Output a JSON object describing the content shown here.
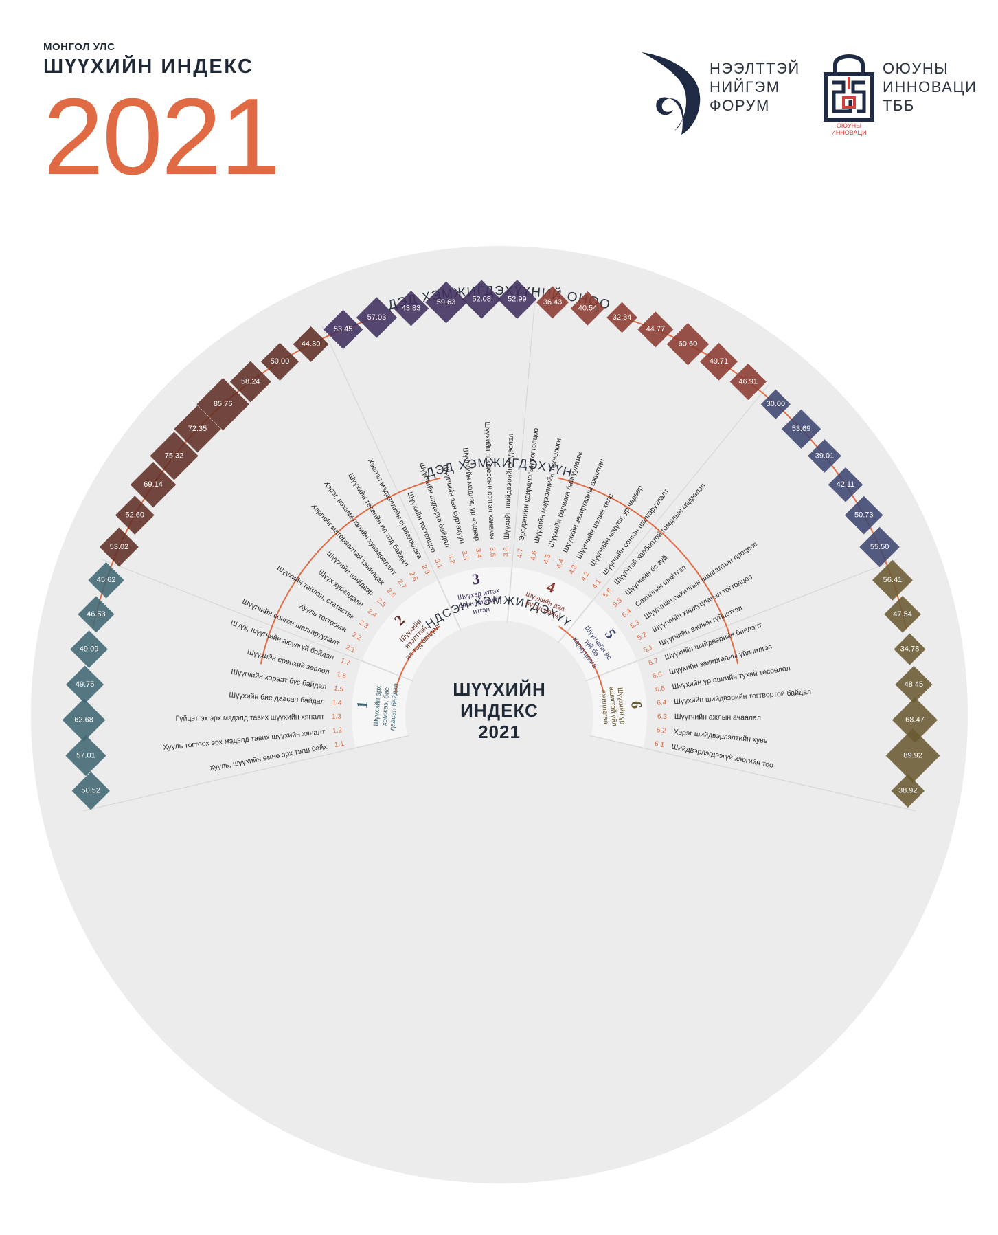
{
  "header": {
    "country": "МОНГОЛ УЛС",
    "title": "ШҮҮХИЙН ИНДЕКС",
    "year": "2021"
  },
  "logos": {
    "forum_lines": [
      "НЭЭЛТТЭЙ",
      "НИЙГЭМ",
      "ФОРУМ"
    ],
    "innovation_lines": [
      "ОЮУНЫ",
      "ИННОВАЦИ",
      "ТББ"
    ],
    "innovation_caption": [
      "ОЮУНЫ",
      "ИННОВАЦИ"
    ]
  },
  "colors": {
    "accent": "#e06a43",
    "background_disc": "#ececec",
    "dim1": "#3f6673",
    "dim2": "#5e2f26",
    "dim3": "#3f2f5c",
    "dim4": "#8a3a30",
    "dim5": "#3d4570",
    "dim6": "#6a5a32"
  },
  "chart_data": {
    "type": "radial",
    "title": "ШҮҮХИЙН ИНДЕКС",
    "center_lines": [
      "ШҮҮХИЙН",
      "ИНДЕКС",
      "2021"
    ],
    "ring_labels": {
      "outer": "ДЭД ХЭМЖИГДЭХҮҮНИЙ ОНОО",
      "middle": "ДЭД ХЭМЖИГДЭХҮҮН",
      "inner": "ҮНДСЭН ХЭМЖИГДЭХҮҮН"
    },
    "dimensions": [
      {
        "num": "1",
        "name_lines": [
          "Шүүхийн эрх",
          "хэмжээ, бие",
          "даасан байдал"
        ],
        "color": "#3f6673",
        "indicators": [
          {
            "code": "1.1",
            "label": "Хууль, шүүхийн өмнө эрх тэгш байх",
            "value": 50.52
          },
          {
            "code": "1.2",
            "label": "Хууль тогтоох эрх мэдэлд тавих шүүхийн хяналт",
            "value": 57.01
          },
          {
            "code": "1.3",
            "label": "Гүйцэтгэх эрх мэдэлд тавих шүүхийн хяналт",
            "value": 62.68
          },
          {
            "code": "1.4",
            "label": "Шүүхийн бие даасан байдал",
            "value": 49.75
          },
          {
            "code": "1.5",
            "label": "Шүүгчийн хараат бус байдал",
            "value": 49.09
          },
          {
            "code": "1.6",
            "label": "Шүүхийн ерөнхий зөвлөл",
            "value": 46.53
          },
          {
            "code": "1.7",
            "label": "Шүүх, шүүгчийн аюулгүй байдал",
            "value": 45.62
          }
        ]
      },
      {
        "num": "2",
        "name_lines": [
          "Шүүхийн",
          "нээлттэй,",
          "ил тод байдал"
        ],
        "color": "#5e2f26",
        "indicators": [
          {
            "code": "2.1",
            "label": "Шүүгчийн сонгон шалгаруулалт",
            "value": 53.02
          },
          {
            "code": "2.2",
            "label": "Хууль тогтоомж",
            "value": 52.6
          },
          {
            "code": "2.3",
            "label": "Шүүхийн тайлан, статистик",
            "value": 69.14
          },
          {
            "code": "2.4",
            "label": "Шүүх хуралдаан",
            "value": 75.32
          },
          {
            "code": "2.5",
            "label": "Шүүхийн шийдвэр",
            "value": 72.35
          },
          {
            "code": "2.6",
            "label": "Хэргийн материалтай танилцах",
            "value": 85.76
          },
          {
            "code": "2.7",
            "label": "Хэрэг, нэхэмжлэлийн хуваарилалт",
            "value": 58.24
          },
          {
            "code": "2.8",
            "label": "Шүүхийн төсвийн ил тод байдал",
            "value": 50.0
          },
          {
            "code": "2.9",
            "label": "Хэвлэл мэдээллийн сурвалжлага",
            "value": 44.3
          }
        ]
      },
      {
        "num": "3",
        "name_lines": [
          "Шүүхэд итгэх",
          "олон нийтийн",
          "итгэл"
        ],
        "color": "#3f2f5c",
        "indicators": [
          {
            "code": "3.1",
            "label": "Шүүхийн тогтолцоо",
            "value": 53.45
          },
          {
            "code": "3.2",
            "label": "Шүүгчийн шударга байдал",
            "value": 57.03
          },
          {
            "code": "3.3",
            "label": "Шүүгчийн зан суртахуун",
            "value": 43.83
          },
          {
            "code": "3.4",
            "label": "Шүүгчийн мэдлэг, ур чадвар",
            "value": 59.63
          },
          {
            "code": "3.5",
            "label": "Шүүхийн процессын сэтгэл ханамж",
            "value": 52.08
          },
          {
            "code": "3.6",
            "label": "Шүүхийн шийдвэрийн үндэслэл",
            "value": 52.99
          }
        ]
      },
      {
        "num": "4",
        "name_lines": [
          "Шүүхийн дэд",
          "бүтэц нөөц"
        ],
        "color": "#8a3a30",
        "indicators": [
          {
            "code": "4.7",
            "label": "Эрсдэлийн удирдлагын тогтолцоо",
            "value": 36.43
          },
          {
            "code": "4.6",
            "label": "Шүүхийн мэдээллийн технологи",
            "value": 40.54
          },
          {
            "code": "4.5",
            "label": "Шүүхийн барилга байгууламж",
            "value": 32.34
          },
          {
            "code": "4.4",
            "label": "Шүүхийн захиргааны ажилтан",
            "value": 44.77
          },
          {
            "code": "4.3",
            "label": "Шүүгчийн цалин хөлс",
            "value": 60.6
          },
          {
            "code": "4.2",
            "label": "Шүүгчийн мэдлэг, ур чадвар",
            "value": 49.71
          },
          {
            "code": "4.1",
            "label": "Шүүгчийн сонгон шалгаруулалт",
            "value": 46.91
          }
        ]
      },
      {
        "num": "5",
        "name_lines": [
          "Шүүгчийн ёс",
          "зүй ба",
          "хариуцлага"
        ],
        "color": "#3d4570",
        "indicators": [
          {
            "code": "5.6",
            "label": "Шүүгчтэй холбоотой гомдлын мэдээлэл",
            "value": 30.0
          },
          {
            "code": "5.5",
            "label": "Шүүгчийн ёс зүй",
            "value": 53.69
          },
          {
            "code": "5.4",
            "label": "Сахилгын шийтгэл",
            "value": 39.01
          },
          {
            "code": "5.3",
            "label": "Шүүгчийн сахилгын шалгалтын процесс",
            "value": 42.11
          },
          {
            "code": "5.2",
            "label": "Шүүгчийн хариуцлагын тогтолцоо",
            "value": 50.73
          },
          {
            "code": "5.1",
            "label": "Шүүгчийн ажлын гүйцэтгэл",
            "value": 55.5
          }
        ]
      },
      {
        "num": "6",
        "name_lines": [
          "Шүүхийн үр",
          "ашигтай үйл",
          "ажиллагаа"
        ],
        "color": "#6a5a32",
        "indicators": [
          {
            "code": "6.7",
            "label": "Шүүхийн шийдвэрийн биелэлт",
            "value": 56.41
          },
          {
            "code": "6.6",
            "label": "Шүүхийн захиргааны үйлчилгээ",
            "value": 47.54
          },
          {
            "code": "6.5",
            "label": "Шүүхийн үр ашгийн тухай төсөөлөл",
            "value": 34.78
          },
          {
            "code": "6.4",
            "label": "Шүүхийн шийдвэрийн тогтвортой байдал",
            "value": 48.45
          },
          {
            "code": "6.3",
            "label": "Шүүгчийн ажлын ачаалал",
            "value": 68.47
          },
          {
            "code": "6.2",
            "label": "Хэрэг шийдвэрлэлтийн хувь",
            "value": 89.92
          },
          {
            "code": "6.1",
            "label": "Шийдвэрлэгдээгүй хэргийн тоо",
            "value": 38.92
          }
        ]
      }
    ]
  }
}
